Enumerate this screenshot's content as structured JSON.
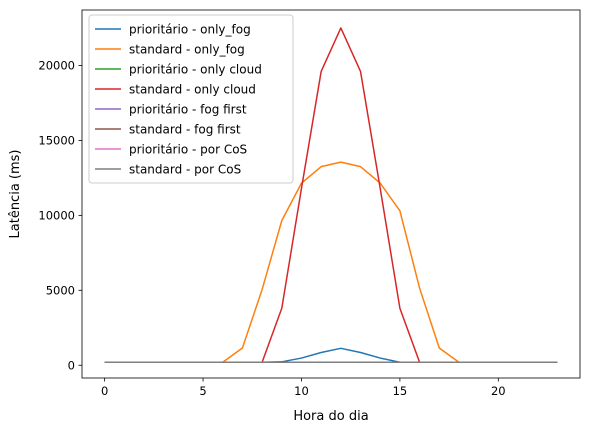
{
  "chart_data": {
    "type": "line",
    "title": "",
    "xlabel": "Hora do dia",
    "ylabel": "Latência (ms)",
    "xlim": [
      -1.15,
      24.15
    ],
    "ylim": [
      -850,
      23700
    ],
    "grid": false,
    "legend_position": "top-left",
    "x": [
      0,
      1,
      2,
      3,
      4,
      5,
      6,
      7,
      8,
      9,
      10,
      11,
      12,
      13,
      14,
      15,
      16,
      17,
      18,
      19,
      20,
      21,
      22,
      23
    ],
    "x_ticks": [
      0,
      5,
      10,
      15,
      20
    ],
    "y_ticks": [
      0,
      5000,
      10000,
      15000,
      20000
    ],
    "series": [
      {
        "name": "prioritário - only_fog",
        "color": "#1f77b4",
        "values": [
          200,
          200,
          200,
          200,
          200,
          200,
          200,
          200,
          200,
          230,
          480,
          850,
          1130,
          850,
          480,
          200,
          200,
          200,
          200,
          200,
          200,
          200,
          200,
          200
        ]
      },
      {
        "name": "standard - only_fog",
        "color": "#ff7f0e",
        "values": [
          200,
          200,
          200,
          200,
          200,
          200,
          200,
          1150,
          5050,
          9650,
          12150,
          13250,
          13550,
          13250,
          12150,
          10300,
          5150,
          1150,
          200,
          200,
          200,
          200,
          200,
          200
        ]
      },
      {
        "name": "prioritário - only cloud",
        "color": "#2ca02c",
        "values": [
          200,
          200,
          200,
          200,
          200,
          200,
          200,
          200,
          200,
          200,
          200,
          200,
          200,
          200,
          200,
          200,
          200,
          200,
          200,
          200,
          200,
          200,
          200,
          200
        ]
      },
      {
        "name": "standard - only cloud",
        "color": "#d62728",
        "values": [
          200,
          200,
          200,
          200,
          200,
          200,
          200,
          200,
          200,
          3800,
          11800,
          19600,
          22500,
          19600,
          11800,
          3800,
          200,
          200,
          200,
          200,
          200,
          200,
          200,
          200
        ]
      },
      {
        "name": "prioritário - fog first",
        "color": "#9467bd",
        "values": [
          200,
          200,
          200,
          200,
          200,
          200,
          200,
          200,
          200,
          200,
          200,
          200,
          200,
          200,
          200,
          200,
          200,
          200,
          200,
          200,
          200,
          200,
          200,
          200
        ]
      },
      {
        "name": "standard - fog first",
        "color": "#8c564b",
        "values": [
          200,
          200,
          200,
          200,
          200,
          200,
          200,
          200,
          200,
          200,
          200,
          200,
          200,
          200,
          200,
          200,
          200,
          200,
          200,
          200,
          200,
          200,
          200,
          200
        ]
      },
      {
        "name": "prioritário - por CoS",
        "color": "#e377c2",
        "values": [
          200,
          200,
          200,
          200,
          200,
          200,
          200,
          200,
          200,
          200,
          200,
          200,
          200,
          200,
          200,
          200,
          200,
          200,
          200,
          200,
          200,
          200,
          200,
          200
        ]
      },
      {
        "name": "standard - por CoS",
        "color": "#7f7f7f",
        "values": [
          200,
          200,
          200,
          200,
          200,
          200,
          200,
          200,
          200,
          200,
          200,
          200,
          200,
          200,
          200,
          200,
          200,
          200,
          200,
          200,
          200,
          200,
          200,
          200
        ]
      }
    ]
  }
}
